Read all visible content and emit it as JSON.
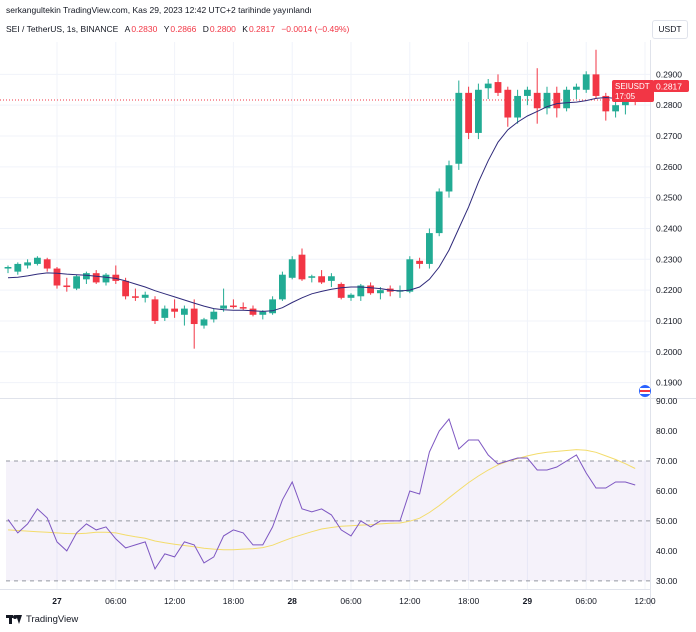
{
  "header": {
    "publish_line": "serkangultekin TradingView.com, Kas 29, 2023 12:42 UTC+2 tarihinde yayınlandı",
    "symbol_desc": "SEI / TetherUS, 1s, BINANCE",
    "ohlc": [
      {
        "k": "A",
        "v": "0.2830"
      },
      {
        "k": "Y",
        "v": "0.2866"
      },
      {
        "k": "D",
        "v": "0.2800"
      },
      {
        "k": "K",
        "v": "0.2817"
      }
    ],
    "change": "−0.0014 (−0.49%)",
    "currency": "USDT"
  },
  "footer": {
    "brand": "TradingView"
  },
  "colors": {
    "up": "#22ab94",
    "down": "#f23645",
    "ma": "#2f2a7a",
    "rsi": "#7e57c2",
    "rsi_ma": "#f3dc6b",
    "rsi_band": "#7e57c2"
  },
  "icons": [
    "tradingview-logo-icon",
    "flag-icon"
  ],
  "chart_data": [
    {
      "type": "candlestick",
      "title": "SEI / TetherUS, 1s, BINANCE",
      "ylim": [
        0.185,
        0.3005
      ],
      "yticks": [
        "0.2900",
        "0.2800",
        "0.2700",
        "0.2600",
        "0.2500",
        "0.2400",
        "0.2300",
        "0.2200",
        "0.2100",
        "0.2000",
        "0.1900"
      ],
      "xticks": [
        {
          "i": 5,
          "label": "27"
        },
        {
          "i": 11,
          "label": "06:00"
        },
        {
          "i": 17,
          "label": "12:00"
        },
        {
          "i": 23,
          "label": "18:00"
        },
        {
          "i": 29,
          "label": "28"
        },
        {
          "i": 35,
          "label": "06:00"
        },
        {
          "i": 41,
          "label": "12:00"
        },
        {
          "i": 47,
          "label": "18:00"
        },
        {
          "i": 53,
          "label": "29"
        },
        {
          "i": 59,
          "label": "06:00"
        },
        {
          "i": 65,
          "label": "12:00"
        }
      ],
      "last_price": 0.2817,
      "price_label": {
        "symbol": "SEIUSDT",
        "price": "0.2817",
        "countdown": "17:05"
      },
      "candles": [
        {
          "o": 0.227,
          "h": 0.228,
          "l": 0.2255,
          "c": 0.2275
        },
        {
          "o": 0.226,
          "h": 0.229,
          "l": 0.225,
          "c": 0.2285
        },
        {
          "o": 0.228,
          "h": 0.23,
          "l": 0.227,
          "c": 0.229
        },
        {
          "o": 0.2285,
          "h": 0.231,
          "l": 0.228,
          "c": 0.2305
        },
        {
          "o": 0.23,
          "h": 0.2305,
          "l": 0.226,
          "c": 0.227
        },
        {
          "o": 0.227,
          "h": 0.2275,
          "l": 0.2205,
          "c": 0.2215
        },
        {
          "o": 0.2215,
          "h": 0.224,
          "l": 0.2195,
          "c": 0.221
        },
        {
          "o": 0.2205,
          "h": 0.225,
          "l": 0.22,
          "c": 0.2245
        },
        {
          "o": 0.2235,
          "h": 0.226,
          "l": 0.222,
          "c": 0.2255
        },
        {
          "o": 0.2255,
          "h": 0.2265,
          "l": 0.222,
          "c": 0.2225
        },
        {
          "o": 0.2225,
          "h": 0.2255,
          "l": 0.2215,
          "c": 0.225
        },
        {
          "o": 0.225,
          "h": 0.228,
          "l": 0.222,
          "c": 0.223
        },
        {
          "o": 0.223,
          "h": 0.224,
          "l": 0.217,
          "c": 0.218
        },
        {
          "o": 0.218,
          "h": 0.2205,
          "l": 0.2165,
          "c": 0.2175
        },
        {
          "o": 0.2175,
          "h": 0.2195,
          "l": 0.216,
          "c": 0.2185
        },
        {
          "o": 0.217,
          "h": 0.218,
          "l": 0.209,
          "c": 0.21
        },
        {
          "o": 0.211,
          "h": 0.215,
          "l": 0.21,
          "c": 0.214
        },
        {
          "o": 0.214,
          "h": 0.217,
          "l": 0.211,
          "c": 0.213
        },
        {
          "o": 0.212,
          "h": 0.215,
          "l": 0.2085,
          "c": 0.214
        },
        {
          "o": 0.214,
          "h": 0.217,
          "l": 0.201,
          "c": 0.209
        },
        {
          "o": 0.2085,
          "h": 0.211,
          "l": 0.2075,
          "c": 0.2105
        },
        {
          "o": 0.2105,
          "h": 0.214,
          "l": 0.2095,
          "c": 0.213
        },
        {
          "o": 0.214,
          "h": 0.2205,
          "l": 0.213,
          "c": 0.215
        },
        {
          "o": 0.215,
          "h": 0.217,
          "l": 0.214,
          "c": 0.2145
        },
        {
          "o": 0.2145,
          "h": 0.216,
          "l": 0.2135,
          "c": 0.214
        },
        {
          "o": 0.214,
          "h": 0.215,
          "l": 0.2115,
          "c": 0.212
        },
        {
          "o": 0.212,
          "h": 0.2135,
          "l": 0.2105,
          "c": 0.213
        },
        {
          "o": 0.2125,
          "h": 0.218,
          "l": 0.212,
          "c": 0.217
        },
        {
          "o": 0.217,
          "h": 0.226,
          "l": 0.2165,
          "c": 0.225
        },
        {
          "o": 0.224,
          "h": 0.231,
          "l": 0.2235,
          "c": 0.23
        },
        {
          "o": 0.2315,
          "h": 0.2335,
          "l": 0.223,
          "c": 0.2235
        },
        {
          "o": 0.224,
          "h": 0.225,
          "l": 0.2225,
          "c": 0.2245
        },
        {
          "o": 0.2245,
          "h": 0.2265,
          "l": 0.222,
          "c": 0.2225
        },
        {
          "o": 0.223,
          "h": 0.2255,
          "l": 0.221,
          "c": 0.2245
        },
        {
          "o": 0.222,
          "h": 0.2225,
          "l": 0.217,
          "c": 0.2175
        },
        {
          "o": 0.2175,
          "h": 0.219,
          "l": 0.2165,
          "c": 0.2185
        },
        {
          "o": 0.218,
          "h": 0.222,
          "l": 0.2165,
          "c": 0.2215
        },
        {
          "o": 0.2215,
          "h": 0.2225,
          "l": 0.2185,
          "c": 0.219
        },
        {
          "o": 0.219,
          "h": 0.221,
          "l": 0.217,
          "c": 0.22
        },
        {
          "o": 0.2205,
          "h": 0.2215,
          "l": 0.218,
          "c": 0.2195
        },
        {
          "o": 0.2195,
          "h": 0.2215,
          "l": 0.2175,
          "c": 0.22
        },
        {
          "o": 0.2195,
          "h": 0.231,
          "l": 0.219,
          "c": 0.23
        },
        {
          "o": 0.2295,
          "h": 0.2305,
          "l": 0.227,
          "c": 0.2285
        },
        {
          "o": 0.2285,
          "h": 0.24,
          "l": 0.227,
          "c": 0.2385
        },
        {
          "o": 0.2385,
          "h": 0.253,
          "l": 0.2375,
          "c": 0.252
        },
        {
          "o": 0.252,
          "h": 0.262,
          "l": 0.25,
          "c": 0.2605
        },
        {
          "o": 0.261,
          "h": 0.288,
          "l": 0.259,
          "c": 0.284
        },
        {
          "o": 0.284,
          "h": 0.286,
          "l": 0.269,
          "c": 0.271
        },
        {
          "o": 0.271,
          "h": 0.287,
          "l": 0.269,
          "c": 0.285
        },
        {
          "o": 0.2855,
          "h": 0.2885,
          "l": 0.282,
          "c": 0.287
        },
        {
          "o": 0.2875,
          "h": 0.29,
          "l": 0.283,
          "c": 0.284
        },
        {
          "o": 0.285,
          "h": 0.286,
          "l": 0.273,
          "c": 0.276
        },
        {
          "o": 0.276,
          "h": 0.285,
          "l": 0.274,
          "c": 0.283
        },
        {
          "o": 0.283,
          "h": 0.286,
          "l": 0.28,
          "c": 0.285
        },
        {
          "o": 0.284,
          "h": 0.292,
          "l": 0.274,
          "c": 0.279
        },
        {
          "o": 0.279,
          "h": 0.286,
          "l": 0.277,
          "c": 0.284
        },
        {
          "o": 0.284,
          "h": 0.286,
          "l": 0.276,
          "c": 0.279
        },
        {
          "o": 0.279,
          "h": 0.286,
          "l": 0.278,
          "c": 0.285
        },
        {
          "o": 0.285,
          "h": 0.287,
          "l": 0.282,
          "c": 0.286
        },
        {
          "o": 0.285,
          "h": 0.291,
          "l": 0.284,
          "c": 0.29
        },
        {
          "o": 0.29,
          "h": 0.298,
          "l": 0.282,
          "c": 0.283
        },
        {
          "o": 0.283,
          "h": 0.284,
          "l": 0.275,
          "c": 0.278
        },
        {
          "o": 0.278,
          "h": 0.286,
          "l": 0.276,
          "c": 0.28
        },
        {
          "o": 0.28,
          "h": 0.284,
          "l": 0.277,
          "c": 0.283
        },
        {
          "o": 0.283,
          "h": 0.2866,
          "l": 0.28,
          "c": 0.2817
        }
      ],
      "ma": [
        0.224,
        0.2242,
        0.2246,
        0.2252,
        0.2256,
        0.2255,
        0.2252,
        0.225,
        0.2248,
        0.2245,
        0.2242,
        0.2238,
        0.223,
        0.222,
        0.221,
        0.2198,
        0.2188,
        0.2178,
        0.2168,
        0.2158,
        0.2148,
        0.214,
        0.2136,
        0.2135,
        0.2135,
        0.2133,
        0.2131,
        0.2133,
        0.2143,
        0.216,
        0.2175,
        0.2188,
        0.2196,
        0.2203,
        0.2208,
        0.221,
        0.221,
        0.2208,
        0.2205,
        0.22,
        0.2197,
        0.22,
        0.221,
        0.2235,
        0.2275,
        0.233,
        0.24,
        0.247,
        0.255,
        0.262,
        0.268,
        0.272,
        0.2745,
        0.2765,
        0.278,
        0.2795,
        0.2805,
        0.2808,
        0.281,
        0.2815,
        0.2822,
        0.2825,
        0.2822,
        0.2822,
        0.2822
      ]
    },
    {
      "type": "line",
      "ylim": [
        27.3,
        90.0
      ],
      "yticks": [
        "90.00",
        "80.00",
        "70.00",
        "60.00",
        "50.00",
        "40.00",
        "30.00"
      ],
      "band": [
        30,
        70
      ],
      "midline": 50,
      "series": [
        {
          "values": [
            50.5,
            46,
            49,
            54,
            51,
            43,
            40,
            46,
            49,
            47,
            48,
            44,
            41,
            42,
            43,
            34,
            39,
            38,
            43,
            42,
            36,
            38,
            45,
            47,
            46,
            42,
            42,
            48,
            57,
            63,
            54,
            53,
            54,
            52,
            47,
            45,
            50,
            48,
            50,
            50,
            50,
            60,
            59,
            73,
            80,
            84,
            74,
            77,
            77,
            72,
            69,
            70,
            71,
            71,
            67,
            67,
            68,
            70,
            72,
            66,
            61,
            61,
            63,
            63,
            62
          ]
        },
        {
          "values": [
            47,
            46.8,
            46.6,
            46.4,
            46.2,
            46,
            45.8,
            45.7,
            45.9,
            46.2,
            46.2,
            46,
            45.3,
            44.7,
            44.2,
            43.3,
            42.7,
            42.2,
            41.8,
            41.4,
            40.9,
            40.6,
            40.4,
            40.4,
            40.6,
            40.7,
            41.1,
            41.9,
            43.2,
            44.4,
            45.4,
            46.4,
            47.3,
            47.8,
            48.2,
            48.4,
            48.6,
            48.7,
            49,
            49.2,
            49.3,
            49.9,
            50.9,
            52.8,
            55.1,
            57.7,
            60.3,
            62.8,
            65,
            67,
            68.7,
            69.9,
            70.8,
            71.7,
            72.4,
            72.9,
            73.2,
            73.5,
            73.8,
            73.6,
            72.9,
            71.7,
            70.5,
            69.1,
            67.5
          ]
        }
      ]
    }
  ]
}
